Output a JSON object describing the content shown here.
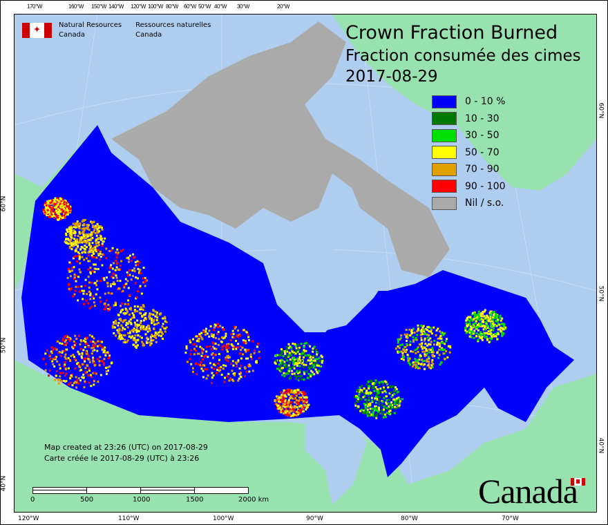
{
  "header": {
    "title_en": "Crown Fraction Burned",
    "title_fr": "Fraction consumée des cimes",
    "date": "2017-08-29"
  },
  "agency": {
    "name_en_line1": "Natural Resources",
    "name_en_line2": "Canada",
    "name_fr_line1": "Ressources naturelles",
    "name_fr_line2": "Canada",
    "flag_icon": "canada-flag-icon"
  },
  "legend": [
    {
      "label": "0 - 10 %",
      "color": "#0000ff"
    },
    {
      "label": "10 - 30",
      "color": "#007a00"
    },
    {
      "label": "30 - 50",
      "color": "#00e000"
    },
    {
      "label": "50 - 70",
      "color": "#ffff00"
    },
    {
      "label": "70 - 90",
      "color": "#e0a000"
    },
    {
      "label": "90 - 100",
      "color": "#ff0000"
    },
    {
      "label": "Nil / s.o.",
      "color": "#aaaaaa"
    }
  ],
  "axes": {
    "top": [
      "170°W",
      "160°W",
      "150°W",
      "140°W",
      "120°W",
      "100°W",
      "80°W",
      "60°W",
      "50°W",
      "40°W",
      "30°W",
      "20°W"
    ],
    "bottom": [
      "120°W",
      "110°W",
      "100°W",
      "90°W",
      "80°W",
      "70°W"
    ],
    "left": [
      "60°N",
      "50°N",
      "40°N"
    ],
    "right": [
      "60°N",
      "50°N",
      "40°N"
    ]
  },
  "credit": {
    "line_en": "Map created at 23:26 (UTC) on 2017-08-29",
    "line_fr": "Carte créée le 2017-08-29 (UTC) à 23:26"
  },
  "scale": {
    "labels": [
      "0",
      "500",
      "1000",
      "1500",
      "2000 km"
    ]
  },
  "wordmark": "Canada",
  "colors": {
    "water": "#afcdef",
    "foreign_land": "#98e2b0",
    "nil": "#aaaaaa",
    "base": "#0000ff"
  }
}
